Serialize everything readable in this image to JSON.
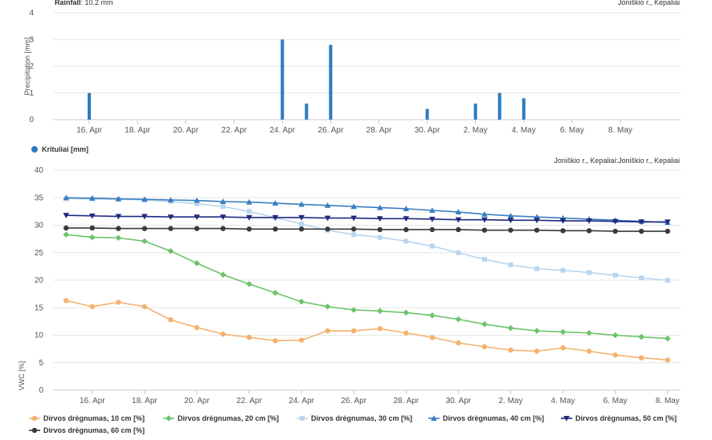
{
  "rainfall": {
    "summary_label": "Rainfall",
    "summary_value": ": 10.2 mm",
    "location": "Joniškio r., Kepaliai",
    "legend": "Krituliai [mm]",
    "colors": {
      "bar": "#2b7bbf"
    }
  },
  "moisture": {
    "location": "Joniškio r., Kepaliai:Joniškio r., Kepaliai"
  },
  "chart_data": [
    {
      "type": "bar",
      "ylabel": "Precipitation [mm]",
      "ylim": [
        0,
        4
      ],
      "yticks": [
        0,
        1,
        2,
        3,
        4
      ],
      "xlim": [
        "2024-04-14",
        "2024-05-10"
      ],
      "xticks": [
        "16. Apr",
        "18. Apr",
        "20. Apr",
        "22. Apr",
        "24. Apr",
        "26. Apr",
        "28. Apr",
        "30. Apr",
        "2. May",
        "4. May",
        "6. May",
        "8. May"
      ],
      "series": [
        {
          "name": "Krituliai [mm]",
          "points": [
            [
              "16. Apr",
              1.0
            ],
            [
              "24. Apr",
              3.0
            ],
            [
              "25. Apr",
              0.6
            ],
            [
              "26. Apr",
              2.8
            ],
            [
              "30. Apr",
              0.4
            ],
            [
              "2. May",
              0.6
            ],
            [
              "3. May",
              1.0
            ],
            [
              "4. May",
              0.8
            ]
          ]
        }
      ],
      "grid": true
    },
    {
      "type": "line",
      "ylabel": "VWC [%]",
      "ylim": [
        0,
        40
      ],
      "yticks": [
        0,
        5,
        10,
        15,
        20,
        25,
        30,
        35,
        40
      ],
      "xticks": [
        "16. Apr",
        "18. Apr",
        "20. Apr",
        "22. Apr",
        "24. Apr",
        "26. Apr",
        "28. Apr",
        "30. Apr",
        "2. May",
        "4. May",
        "6. May",
        "8. May"
      ],
      "x": [
        "15. Apr",
        "16. Apr",
        "17. Apr",
        "18. Apr",
        "19. Apr",
        "20. Apr",
        "21. Apr",
        "22. Apr",
        "23. Apr",
        "24. Apr",
        "25. Apr",
        "26. Apr",
        "27. Apr",
        "28. Apr",
        "29. Apr",
        "30. Apr",
        "1. May",
        "2. May",
        "3. May",
        "4. May",
        "5. May",
        "6. May",
        "7. May",
        "8. May"
      ],
      "grid": true,
      "legend_position": "bottom",
      "series": [
        {
          "name": "Dirvos drėgnumas, 10 cm [%]",
          "color": "#f4b26e",
          "marker": "circle",
          "values": [
            16.3,
            15.2,
            16.0,
            15.2,
            12.8,
            11.4,
            10.2,
            9.6,
            9.0,
            9.1,
            10.8,
            10.8,
            11.2,
            10.4,
            9.6,
            8.6,
            7.9,
            7.3,
            7.1,
            7.7,
            7.1,
            6.4,
            5.9,
            5.5
          ]
        },
        {
          "name": "Dirvos drėgnumas, 20 cm [%]",
          "color": "#6cc36b",
          "marker": "diamond",
          "values": [
            28.3,
            27.8,
            27.7,
            27.1,
            25.3,
            23.1,
            21.0,
            19.3,
            17.7,
            16.1,
            15.2,
            14.6,
            14.4,
            14.1,
            13.6,
            12.9,
            12.0,
            11.3,
            10.8,
            10.6,
            10.4,
            10.0,
            9.7,
            9.4
          ]
        },
        {
          "name": "Dirvos drėgnumas, 30 cm [%]",
          "color": "#b9d5ef",
          "marker": "square",
          "values": [
            34.8,
            34.8,
            34.7,
            34.6,
            34.3,
            33.9,
            33.4,
            32.5,
            31.4,
            30.2,
            29.1,
            28.3,
            27.8,
            27.1,
            26.2,
            25.0,
            23.8,
            22.8,
            22.1,
            21.8,
            21.4,
            20.9,
            20.4,
            20.0
          ]
        },
        {
          "name": "Dirvos drėgnumas, 40 cm [%]",
          "color": "#3a7ec0",
          "marker": "triangle",
          "values": [
            35.0,
            34.9,
            34.8,
            34.7,
            34.6,
            34.5,
            34.3,
            34.2,
            34.0,
            33.8,
            33.6,
            33.4,
            33.2,
            33.0,
            32.7,
            32.4,
            32.0,
            31.7,
            31.5,
            31.3,
            31.1,
            30.9,
            30.7,
            30.5
          ]
        },
        {
          "name": "Dirvos drėgnumas, 50 cm [%]",
          "color": "#1f2a7e",
          "marker": "triangle-down",
          "values": [
            31.8,
            31.7,
            31.6,
            31.6,
            31.5,
            31.5,
            31.5,
            31.4,
            31.4,
            31.4,
            31.3,
            31.3,
            31.2,
            31.2,
            31.1,
            31.0,
            31.0,
            30.9,
            30.9,
            30.8,
            30.8,
            30.7,
            30.6,
            30.6
          ]
        },
        {
          "name": "Dirvos drėgnumas, 60 cm [%]",
          "color": "#3a3a3a",
          "marker": "circle",
          "values": [
            29.5,
            29.5,
            29.4,
            29.4,
            29.4,
            29.4,
            29.4,
            29.3,
            29.3,
            29.3,
            29.3,
            29.3,
            29.2,
            29.2,
            29.2,
            29.2,
            29.1,
            29.1,
            29.1,
            29.0,
            29.0,
            28.9,
            28.9,
            28.9
          ]
        }
      ]
    }
  ]
}
